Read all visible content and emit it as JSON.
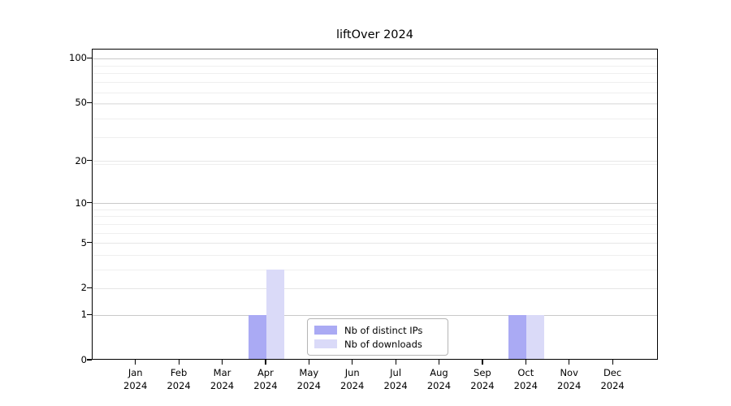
{
  "chart_data": {
    "type": "bar",
    "title": "liftOver 2024",
    "x_categories": [
      "Jan",
      "Feb",
      "Mar",
      "Apr",
      "May",
      "Jun",
      "Jul",
      "Aug",
      "Sep",
      "Oct",
      "Nov",
      "Dec"
    ],
    "x_year": "2024",
    "series": [
      {
        "name": "Nb of distinct IPs",
        "color": "#aaaaf4",
        "values": [
          0,
          0,
          0,
          1,
          0,
          0,
          0,
          0,
          0,
          1,
          0,
          0
        ]
      },
      {
        "name": "Nb of downloads",
        "color": "#dadaf8",
        "values": [
          0,
          0,
          0,
          3,
          0,
          0,
          0,
          0,
          0,
          1,
          0,
          0
        ]
      }
    ],
    "y_ticks": [
      0,
      1,
      2,
      5,
      10,
      20,
      50,
      100
    ],
    "y_scale": "log10(value+1)",
    "ylim": [
      0,
      115
    ],
    "xlabel": "",
    "ylabel": "",
    "grid": true,
    "legend_position": "bottom-center",
    "colors": {
      "spine": "#000000",
      "grid_major_dark": "#c9c9c9",
      "grid_major_light": "#e6e6e6",
      "grid_minor": "#efefef"
    }
  }
}
